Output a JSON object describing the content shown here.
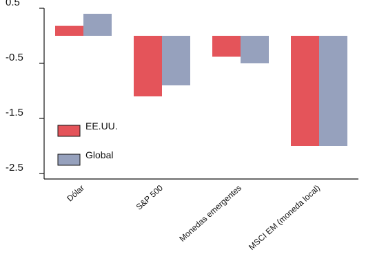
{
  "chart_data": {
    "type": "bar",
    "categories": [
      "Dólar",
      "S&P 500",
      "Monedas emergentes",
      "MSCI EM (moneda local)"
    ],
    "series": [
      {
        "name": "EE.UU.",
        "color": "#e4545a",
        "values": [
          0.18,
          -1.1,
          -0.38,
          -2.0
        ]
      },
      {
        "name": "Global",
        "color": "#96a1bd",
        "values": [
          0.4,
          -0.9,
          -0.5,
          -2.0
        ]
      }
    ],
    "ylim": [
      -2.6,
      0.5
    ],
    "yticks": [
      0.5,
      -0.5,
      -1.5,
      -2.5
    ],
    "ytick_labels": [
      "0.5",
      "-0.5",
      "-1.5",
      "-2.5"
    ],
    "title": "",
    "xlabel": "",
    "ylabel": "",
    "legend_position": "left",
    "background": "#ffffff",
    "grid": false
  }
}
